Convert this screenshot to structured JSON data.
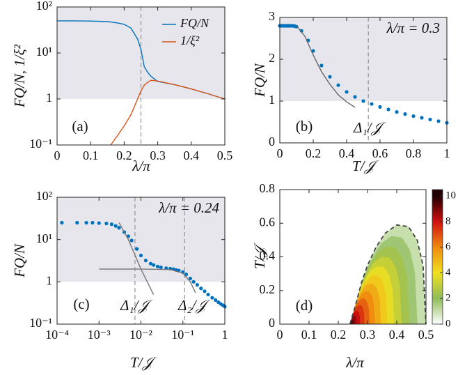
{
  "chart_data": [
    {
      "type": "line",
      "panel_label": "(a)",
      "xlabel": "λ/π",
      "ylabel": "FQ/N,  1/ξ²",
      "xlim": [
        0,
        0.5
      ],
      "xticks": [
        0,
        0.1,
        0.2,
        0.3,
        0.4,
        0.5
      ],
      "ylim": [
        0.1,
        100
      ],
      "yscale": "log",
      "yticks": [
        {
          "value": 0.1,
          "label": "10⁻¹"
        },
        1,
        {
          "value": 10,
          "label": "10¹"
        },
        {
          "value": 100,
          "label": "10²"
        }
      ],
      "shade": [
        1,
        100
      ],
      "vlines": [
        0.25
      ],
      "legend": "upper right",
      "x": [
        0,
        0.05,
        0.1,
        0.15,
        0.16,
        0.18,
        0.2,
        0.22,
        0.24,
        0.25,
        0.26,
        0.27,
        0.28,
        0.3,
        0.35,
        0.4,
        0.45,
        0.5
      ],
      "series": [
        {
          "name": "FQ/N",
          "color": "#0072bd",
          "style": "line",
          "values": [
            50,
            50,
            49.5,
            48,
            47,
            45,
            42,
            35,
            20,
            12,
            5,
            3.8,
            3.1,
            2.4,
            2.05,
            1.65,
            1.3,
            1.0
          ]
        },
        {
          "name": "1/ξ²",
          "color": "#d95319",
          "style": "line",
          "values": [
            null,
            null,
            null,
            null,
            0.1,
            0.16,
            0.26,
            0.45,
            1.0,
            1.5,
            2.0,
            2.3,
            2.55,
            2.45,
            2.05,
            1.65,
            1.3,
            1.0
          ]
        }
      ]
    },
    {
      "type": "line",
      "panel_label": "(b)",
      "xlabel": "T/𝒥",
      "ylabel": "FQ/N",
      "annotations": [
        "λ/π = 0.3",
        "Δ₁/𝒥"
      ],
      "xlim": [
        0,
        1
      ],
      "xticks": [
        0,
        0.2,
        0.4,
        0.6,
        0.8,
        1
      ],
      "ylim": [
        0,
        3
      ],
      "yticks": [
        0,
        1,
        2,
        3
      ],
      "shade": [
        1,
        3
      ],
      "vlines": [
        0.53
      ],
      "series": [
        {
          "color": "#0072bd",
          "style": "markers",
          "x": [
            0,
            0.01,
            0.02,
            0.03,
            0.04,
            0.05,
            0.06,
            0.07,
            0.08,
            0.09,
            0.1,
            0.13,
            0.17,
            0.2,
            0.25,
            0.3,
            0.35,
            0.4,
            0.45,
            0.5,
            0.55,
            0.6,
            0.65,
            0.7,
            0.75,
            0.8,
            0.85,
            0.9,
            0.95,
            1
          ],
          "values": [
            2.8,
            2.8,
            2.8,
            2.8,
            2.8,
            2.8,
            2.8,
            2.8,
            2.8,
            2.79,
            2.78,
            2.68,
            2.45,
            2.2,
            1.85,
            1.58,
            1.38,
            1.22,
            1.1,
            1.0,
            0.93,
            0.86,
            0.8,
            0.74,
            0.69,
            0.64,
            0.6,
            0.56,
            0.52,
            0.48
          ]
        },
        {
          "color": "#666666",
          "style": "line",
          "x": [
            0.1,
            0.15,
            0.2,
            0.25,
            0.3,
            0.35,
            0.4,
            0.45
          ],
          "values": [
            2.8,
            2.55,
            2.1,
            1.7,
            1.4,
            1.15,
            0.98,
            0.85
          ]
        }
      ]
    },
    {
      "type": "line",
      "panel_label": "(c)",
      "xlabel": "T/𝒥",
      "ylabel": "FQ/N",
      "annotations": [
        "λ/π = 0.24",
        "Δ₁/𝒥",
        "Δ₂/𝒥"
      ],
      "xlim": [
        0.0001,
        1
      ],
      "xscale": "log",
      "xticks": [
        {
          "value": 0.0001,
          "label": "10⁻⁴"
        },
        {
          "value": 0.001,
          "label": "10⁻³"
        },
        {
          "value": 0.01,
          "label": "10⁻²"
        },
        {
          "value": 0.1,
          "label": "10⁻¹"
        },
        1
      ],
      "ylim": [
        0.1,
        100
      ],
      "yscale": "log",
      "yticks": [
        {
          "value": 0.1,
          "label": "10⁻¹"
        },
        1,
        {
          "value": 10,
          "label": "10¹"
        },
        {
          "value": 100,
          "label": "10²"
        }
      ],
      "shade": [
        1,
        100
      ],
      "vlines": [
        0.0072,
        0.11
      ],
      "series": [
        {
          "color": "#0072bd",
          "style": "markers",
          "x": [
            0.00013,
            0.0003,
            0.0005,
            0.0007,
            0.001,
            0.0015,
            0.002,
            0.0025,
            0.003,
            0.004,
            0.005,
            0.006,
            0.008,
            0.01,
            0.013,
            0.017,
            0.02,
            0.025,
            0.03,
            0.04,
            0.05,
            0.06,
            0.07,
            0.08,
            0.1,
            0.12,
            0.15,
            0.18,
            0.22,
            0.27,
            0.33,
            0.4,
            0.5,
            0.6,
            0.7,
            0.8,
            0.9,
            1
          ],
          "values": [
            25,
            25,
            25,
            25,
            24.5,
            24,
            23,
            21,
            19,
            15,
            12,
            9.5,
            6,
            4.2,
            3.2,
            2.7,
            2.5,
            2.3,
            2.2,
            2.1,
            2.05,
            2.0,
            1.9,
            1.85,
            1.7,
            1.5,
            1.2,
            1.0,
            0.85,
            0.7,
            0.6,
            0.5,
            0.42,
            0.37,
            0.33,
            0.3,
            0.28,
            0.26
          ]
        },
        {
          "color": "#777777",
          "style": "line",
          "x": [
            0.003,
            0.005,
            0.01,
            0.02
          ],
          "values": [
            25,
            10,
            2,
            0.5
          ]
        },
        {
          "color": "#777777",
          "style": "line",
          "x": [
            0.001,
            0.01,
            0.05,
            0.1,
            0.15,
            0.2
          ],
          "values": [
            2,
            2,
            1.95,
            1.6,
            1.0,
            0.55
          ]
        }
      ]
    },
    {
      "type": "heatmap",
      "panel_label": "(d)",
      "xlabel": "λ/π",
      "ylabel": "T/𝒥",
      "xlim": [
        0,
        0.5
      ],
      "xticks": [
        0,
        0.1,
        0.2,
        0.3,
        0.4,
        0.5
      ],
      "ylim": [
        0,
        0.8
      ],
      "yticks": [
        0,
        0.2,
        0.4,
        0.6,
        0.8
      ],
      "zlim": [
        0,
        10.5
      ],
      "zticks": [
        0,
        2,
        4,
        6,
        8,
        10
      ],
      "colors": [
        "#ffffff",
        "#8fbc5a",
        "#f0e020",
        "#f08a10",
        "#d01010",
        "#200000"
      ],
      "series": [
        {
          "color": "#444444",
          "style": "dashed",
          "x": [
            0.24,
            0.26,
            0.28,
            0.3,
            0.33,
            0.36,
            0.4,
            0.44,
            0.47,
            0.49,
            0.5
          ],
          "values": [
            0,
            0.12,
            0.25,
            0.35,
            0.46,
            0.54,
            0.59,
            0.58,
            0.5,
            0.35,
            0
          ]
        }
      ]
    }
  ]
}
